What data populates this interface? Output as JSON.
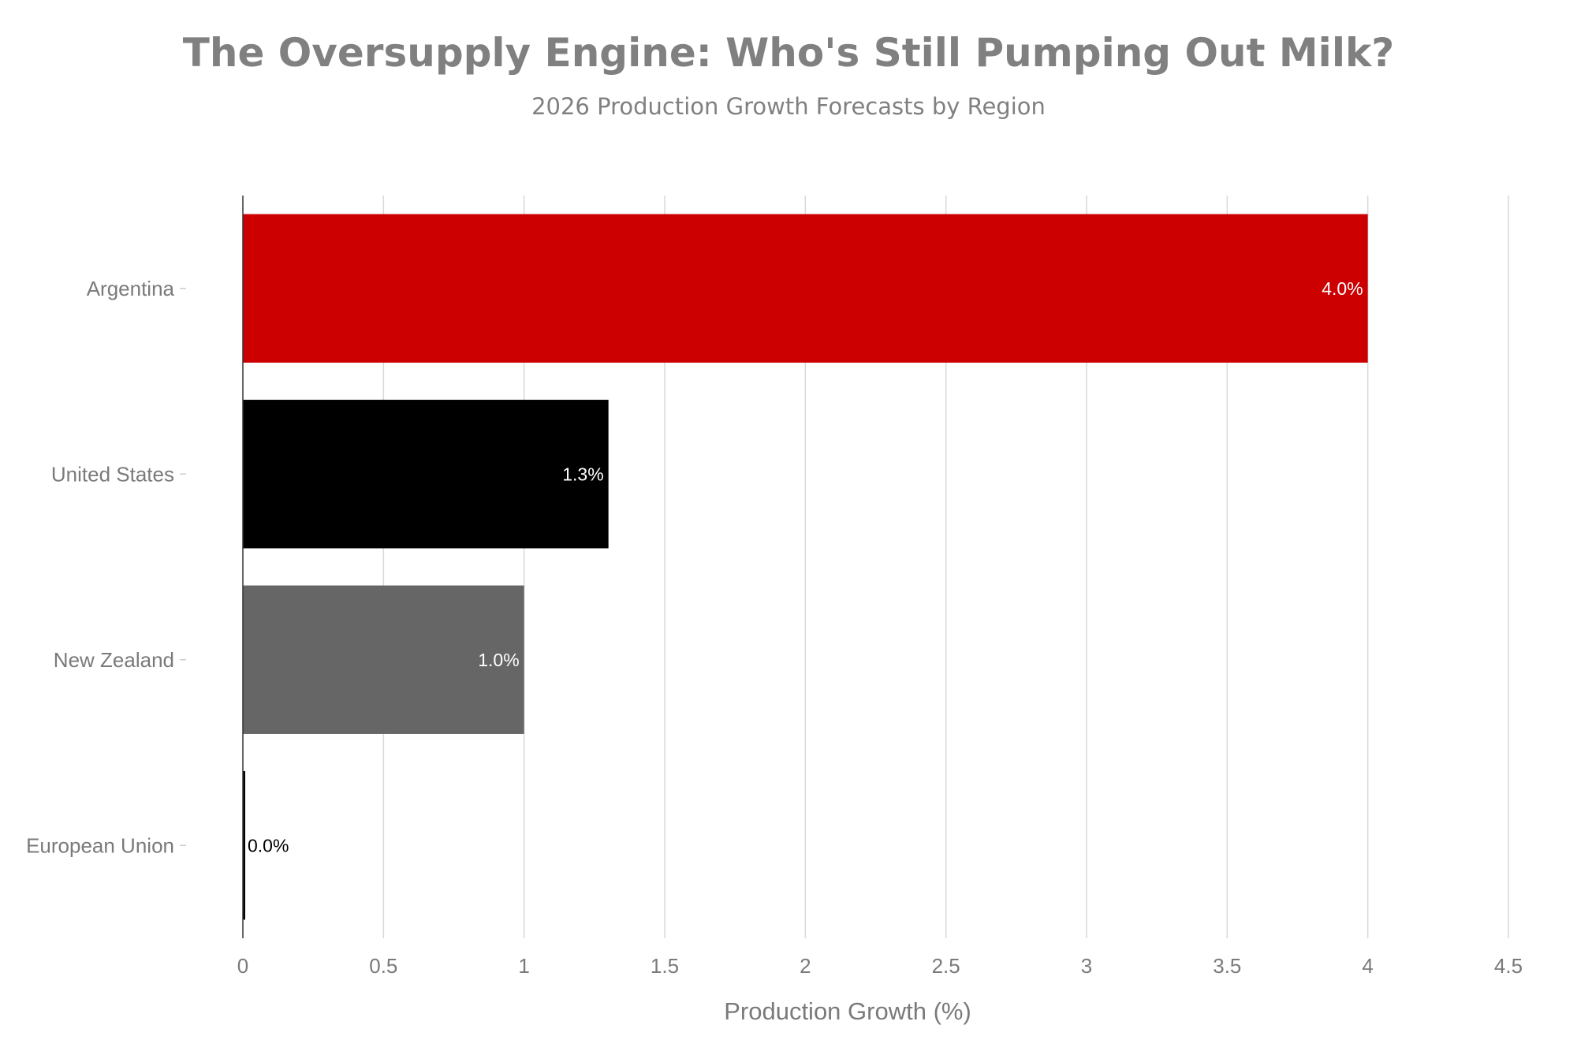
{
  "chart_data": {
    "type": "bar",
    "orientation": "horizontal",
    "title": "The Oversupply Engine: Who's Still Pumping Out Milk?",
    "subtitle": "2026 Production Growth Forecasts by Region",
    "xlabel": "Production Growth (%)",
    "ylabel": "",
    "xlim": [
      0,
      4.5
    ],
    "xticks": [
      0,
      0.5,
      1,
      1.5,
      2,
      2.5,
      3,
      3.5,
      4,
      4.5
    ],
    "xtick_labels": [
      "0",
      "0.5",
      "1",
      "1.5",
      "2",
      "2.5",
      "3",
      "3.5",
      "4",
      "4.5"
    ],
    "grid": true,
    "categories": [
      "Argentina",
      "United States",
      "New Zealand",
      "European Union"
    ],
    "values": [
      4.0,
      1.3,
      1.0,
      0.0
    ],
    "data_labels": [
      "4.0%",
      "1.3%",
      "1.0%",
      "0.0%"
    ],
    "colors": [
      "#cc0000",
      "#000000",
      "#666666",
      "#000000"
    ],
    "label_colors": [
      "#ffffff",
      "#ffffff",
      "#ffffff",
      "#000000"
    ],
    "grid_color": "#d9d9d9",
    "axis_color": "#333333"
  }
}
